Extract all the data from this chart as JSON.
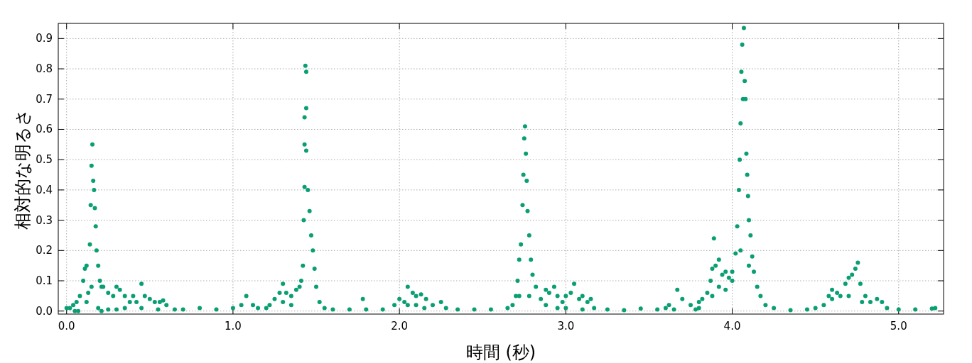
{
  "chart_data": {
    "type": "scatter",
    "xlabel": "時間 (秒)",
    "ylabel": "相対的な明るさ",
    "marker": "circle",
    "grid": true,
    "xlim": [
      -0.05,
      5.27
    ],
    "ylim": [
      -0.01,
      0.95
    ],
    "xticks": [
      {
        "value": 0,
        "label": "0.0"
      },
      {
        "value": 1,
        "label": "1.0"
      },
      {
        "value": 2,
        "label": "2.0"
      },
      {
        "value": 3,
        "label": "3.0"
      },
      {
        "value": 4,
        "label": "4.0"
      },
      {
        "value": 5,
        "label": "5.0"
      }
    ],
    "yticks": [
      {
        "value": 0,
        "label": "0.0"
      },
      0.1,
      0.2,
      0.3,
      0.4,
      0.5,
      0.6,
      0.7,
      0.8,
      0.9
    ],
    "series": [
      {
        "color": "#0a9e73",
        "x": [
          0.0,
          0.02,
          0.04,
          0.06,
          0.08,
          0.05,
          0.07,
          0.1,
          0.11,
          0.12,
          0.13,
          0.14,
          0.145,
          0.15,
          0.155,
          0.16,
          0.165,
          0.17,
          0.175,
          0.18,
          0.19,
          0.2,
          0.21,
          0.12,
          0.15,
          0.19,
          0.21,
          0.22,
          0.25,
          0.28,
          0.3,
          0.32,
          0.35,
          0.38,
          0.4,
          0.42,
          0.45,
          0.47,
          0.5,
          0.53,
          0.56,
          0.58,
          0.6,
          0.25,
          0.3,
          0.35,
          0.45,
          0.55,
          0.65,
          0.7,
          0.8,
          0.9,
          1.0,
          1.05,
          1.08,
          1.12,
          1.15,
          1.2,
          1.22,
          1.25,
          1.28,
          1.3,
          1.32,
          1.35,
          1.38,
          1.4,
          1.41,
          1.42,
          1.425,
          1.43,
          1.43,
          1.43,
          1.435,
          1.44,
          1.44,
          1.44,
          1.45,
          1.46,
          1.47,
          1.48,
          1.49,
          1.5,
          1.52,
          1.55,
          1.3,
          1.35,
          1.6,
          1.7,
          1.78,
          1.8,
          1.9,
          1.97,
          2.0,
          2.03,
          2.05,
          2.08,
          2.1,
          2.13,
          2.16,
          2.2,
          2.25,
          2.28,
          2.05,
          2.1,
          2.15,
          2.35,
          2.45,
          2.55,
          2.65,
          2.68,
          2.7,
          2.71,
          2.72,
          2.73,
          2.74,
          2.745,
          2.75,
          2.755,
          2.76,
          2.765,
          2.77,
          2.78,
          2.79,
          2.8,
          2.82,
          2.72,
          2.78,
          2.85,
          2.88,
          2.9,
          2.93,
          2.95,
          2.98,
          3.0,
          3.03,
          3.05,
          3.08,
          3.1,
          3.13,
          3.15,
          3.17,
          2.88,
          2.95,
          3.0,
          3.1,
          3.25,
          3.35,
          3.45,
          3.55,
          3.6,
          3.62,
          3.65,
          3.67,
          3.7,
          3.75,
          3.78,
          3.8,
          3.82,
          3.85,
          3.87,
          3.88,
          3.89,
          3.9,
          3.92,
          3.94,
          3.96,
          3.98,
          4.0,
          3.8,
          3.88,
          3.92,
          3.96,
          4.0,
          4.02,
          4.03,
          4.04,
          4.045,
          4.05,
          4.055,
          4.06,
          4.065,
          4.07,
          4.075,
          4.08,
          4.085,
          4.09,
          4.095,
          4.1,
          4.11,
          4.12,
          4.13,
          4.15,
          4.17,
          4.2,
          4.05,
          4.1,
          4.25,
          4.35,
          4.45,
          4.5,
          4.55,
          4.58,
          4.6,
          4.63,
          4.65,
          4.68,
          4.7,
          4.72,
          4.74,
          4.755,
          4.77,
          4.8,
          4.83,
          4.87,
          4.9,
          4.93,
          4.6,
          4.7,
          4.78,
          5.0,
          5.1,
          5.2,
          5.22
        ],
        "values": [
          0.01,
          0.01,
          0.02,
          0.03,
          0.05,
          0.0,
          0.0,
          0.1,
          0.14,
          0.15,
          0.06,
          0.22,
          0.35,
          0.48,
          0.55,
          0.43,
          0.4,
          0.34,
          0.28,
          0.2,
          0.15,
          0.1,
          0.08,
          0.03,
          0.08,
          0.01,
          0.0,
          0.08,
          0.06,
          0.05,
          0.08,
          0.07,
          0.05,
          0.03,
          0.05,
          0.03,
          0.09,
          0.05,
          0.04,
          0.03,
          0.03,
          0.035,
          0.02,
          0.005,
          0.005,
          0.01,
          0.01,
          0.005,
          0.005,
          0.005,
          0.01,
          0.005,
          0.01,
          0.02,
          0.05,
          0.02,
          0.01,
          0.01,
          0.02,
          0.04,
          0.06,
          0.09,
          0.06,
          0.05,
          0.07,
          0.08,
          0.1,
          0.15,
          0.3,
          0.41,
          0.55,
          0.64,
          0.81,
          0.79,
          0.67,
          0.53,
          0.4,
          0.33,
          0.25,
          0.2,
          0.14,
          0.08,
          0.03,
          0.01,
          0.03,
          0.02,
          0.005,
          0.005,
          0.04,
          0.005,
          0.005,
          0.02,
          0.04,
          0.03,
          0.08,
          0.06,
          0.05,
          0.055,
          0.04,
          0.02,
          0.03,
          0.01,
          0.02,
          0.02,
          0.01,
          0.005,
          0.005,
          0.005,
          0.01,
          0.02,
          0.05,
          0.1,
          0.17,
          0.22,
          0.35,
          0.45,
          0.57,
          0.61,
          0.52,
          0.43,
          0.33,
          0.25,
          0.17,
          0.12,
          0.08,
          0.05,
          0.05,
          0.04,
          0.07,
          0.06,
          0.08,
          0.05,
          0.03,
          0.05,
          0.06,
          0.09,
          0.04,
          0.05,
          0.03,
          0.04,
          0.01,
          0.02,
          0.01,
          0.01,
          0.005,
          0.005,
          0.003,
          0.008,
          0.005,
          0.01,
          0.02,
          0.005,
          0.07,
          0.04,
          0.02,
          0.005,
          0.03,
          0.04,
          0.06,
          0.1,
          0.14,
          0.24,
          0.15,
          0.17,
          0.12,
          0.13,
          0.11,
          0.13,
          0.01,
          0.05,
          0.08,
          0.07,
          0.1,
          0.19,
          0.28,
          0.4,
          0.5,
          0.62,
          0.79,
          0.88,
          0.7,
          0.935,
          0.76,
          0.7,
          0.52,
          0.45,
          0.38,
          0.3,
          0.25,
          0.18,
          0.13,
          0.08,
          0.05,
          0.02,
          0.2,
          0.15,
          0.01,
          0.003,
          0.005,
          0.01,
          0.02,
          0.05,
          0.07,
          0.06,
          0.05,
          0.09,
          0.11,
          0.12,
          0.14,
          0.16,
          0.09,
          0.05,
          0.03,
          0.04,
          0.03,
          0.01,
          0.04,
          0.05,
          0.03,
          0.005,
          0.005,
          0.008,
          0.01
        ]
      }
    ]
  }
}
